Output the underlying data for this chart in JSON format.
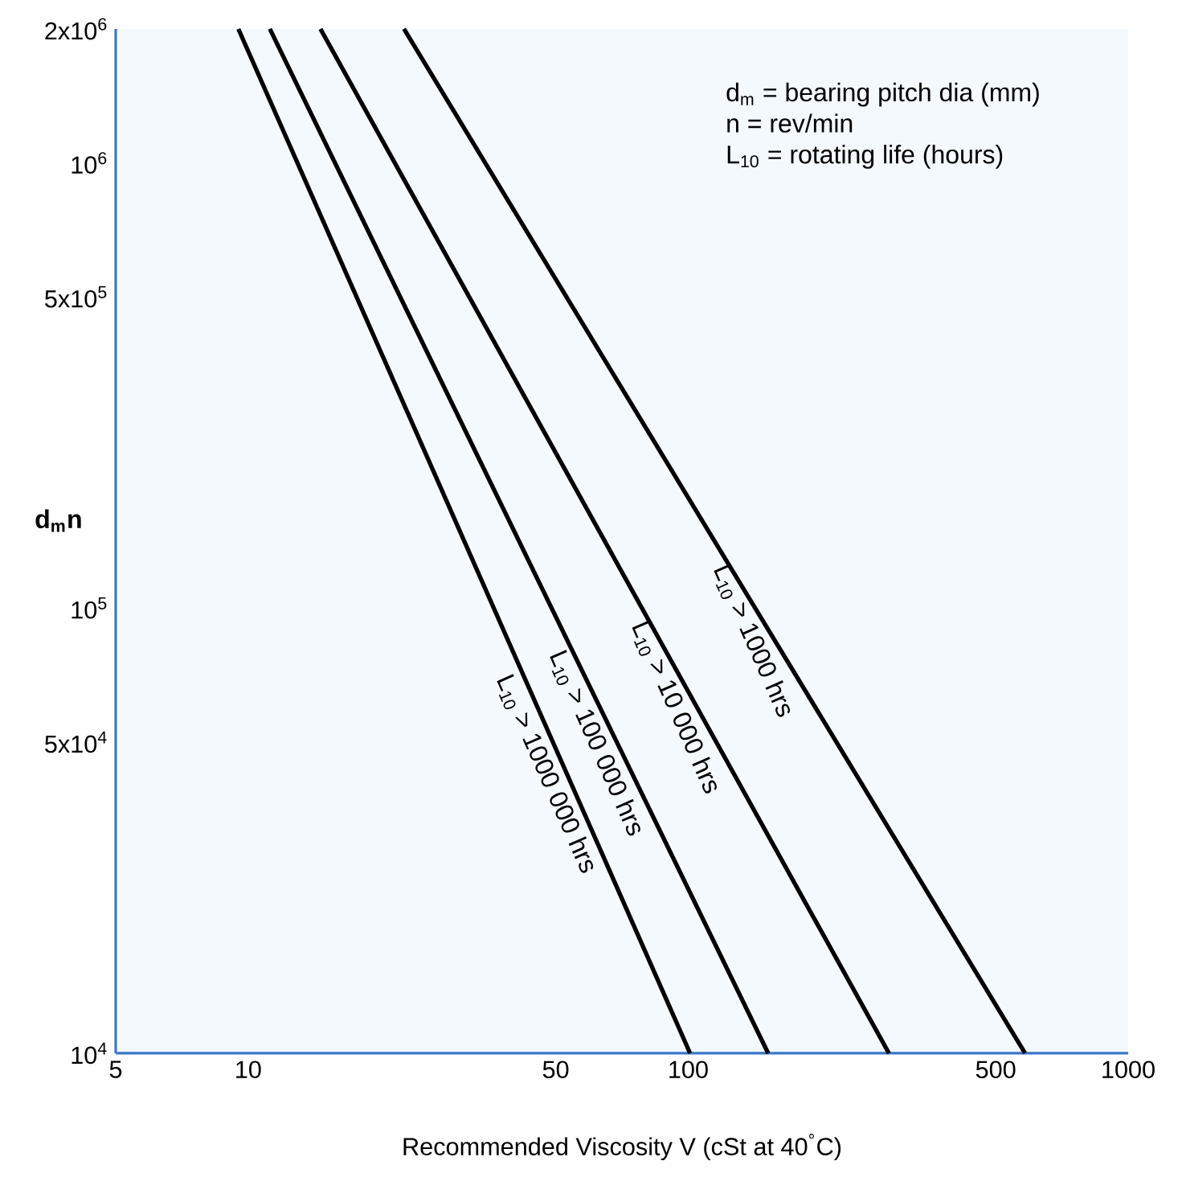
{
  "chart_data": {
    "type": "line",
    "xlabel": "Recommended Viscosity V (cSt at 40$^{°}$C)",
    "ylabel": "**d$_{m}$n**",
    "log": "xy",
    "marker": "none",
    "line_style": "solid",
    "xlim": [
      5,
      1000
    ],
    "ylim": [
      10000,
      2000000
    ],
    "xticks": [
      5,
      10,
      50,
      100,
      500,
      1000
    ],
    "yticks": [
      {
        "value": 10000,
        "label": "10$^{4}$"
      },
      {
        "value": 50000,
        "label": "5x10$^{4}$"
      },
      {
        "value": 100000,
        "label": "10$^{5}$"
      },
      {
        "value": 500000,
        "label": "5x10$^{5}$"
      },
      {
        "value": 1000000,
        "label": "10$^{6}$"
      },
      {
        "value": 2000000,
        "label": "2x10$^{6}$"
      }
    ],
    "series": [
      {
        "color": "#000000",
        "x": [
          9.5,
          101
        ],
        "values": [
          2000000,
          10000
        ]
      },
      {
        "color": "#000000",
        "x": [
          11.2,
          152
        ],
        "values": [
          2000000,
          10000
        ]
      },
      {
        "color": "#000000",
        "x": [
          14.6,
          286
        ],
        "values": [
          2000000,
          10000
        ]
      },
      {
        "color": "#000000",
        "x": [
          22.6,
          583
        ],
        "values": [
          2000000,
          10000
        ]
      }
    ],
    "annotations": [
      {
        "text": "L$_{10}$ > 1000 hrs",
        "x": 153.8,
        "y": 87800
      },
      {
        "text": "L$_{10}$ > 10 000 hrs",
        "x": 102.5,
        "y": 62200
      },
      {
        "text": "L$_{10}$ > 100 000 hrs",
        "x": 67.7,
        "y": 51700
      },
      {
        "text": "L$_{10}$ > 1000 000 hrs",
        "x": 52.1,
        "y": 44100
      },
      "d$_{m}$  = bearing pitch dia (mm)",
      "n = rev/min",
      "L$_{10}$ = rotating life (hours)"
    ]
  }
}
